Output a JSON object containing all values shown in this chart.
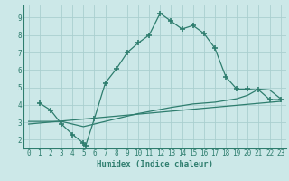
{
  "xlabel": "Humidex (Indice chaleur)",
  "bg_color": "#cce8e8",
  "grid_color": "#aacfcf",
  "line_color": "#2e7d6e",
  "xlim": [
    -0.5,
    23.5
  ],
  "ylim": [
    1.5,
    9.7
  ],
  "xticks": [
    0,
    1,
    2,
    3,
    4,
    5,
    6,
    7,
    8,
    9,
    10,
    11,
    12,
    13,
    14,
    15,
    16,
    17,
    18,
    19,
    20,
    21,
    22,
    23
  ],
  "yticks": [
    2,
    3,
    4,
    5,
    6,
    7,
    8,
    9
  ],
  "curve1_x": [
    1,
    2,
    3,
    4,
    5,
    5.2,
    6,
    7,
    8,
    9,
    10,
    11,
    12,
    13,
    14,
    15,
    16,
    17,
    18,
    19,
    20,
    21,
    22,
    23
  ],
  "curve1_y": [
    4.1,
    3.7,
    2.9,
    2.3,
    1.8,
    1.65,
    3.2,
    5.25,
    6.05,
    7.0,
    7.55,
    8.0,
    9.25,
    8.8,
    8.35,
    8.55,
    8.1,
    7.25,
    5.6,
    4.9,
    4.9,
    4.85,
    4.3,
    4.3
  ],
  "curve2_x": [
    0,
    3,
    4,
    5,
    6,
    10,
    13,
    15,
    17,
    19,
    20,
    21,
    22,
    23
  ],
  "curve2_y": [
    3.05,
    3.05,
    2.9,
    2.75,
    2.9,
    3.5,
    3.85,
    4.05,
    4.15,
    4.35,
    4.55,
    4.9,
    4.85,
    4.35
  ],
  "curve3_x": [
    0,
    23
  ],
  "curve3_y": [
    2.9,
    4.2
  ]
}
